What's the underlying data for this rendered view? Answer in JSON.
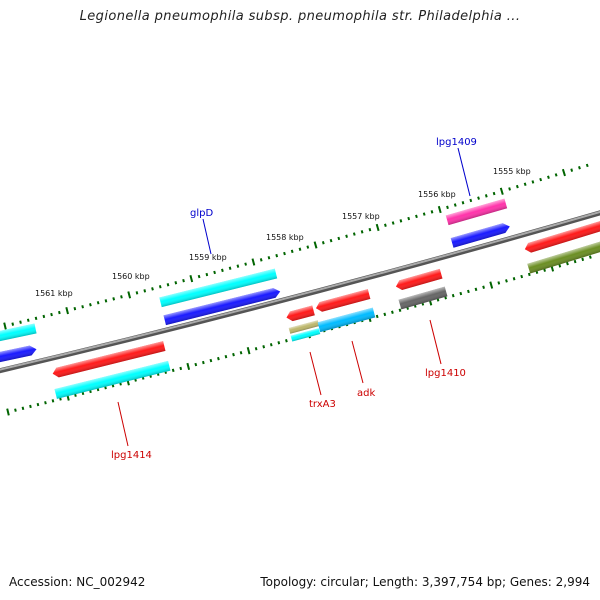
{
  "title": "Legionella pneumophila subsp. pneumophila str. Philadelphia ...",
  "footer": {
    "accession": "Accession: NC_002942",
    "summary": "Topology: circular; Length: 3,397,754 bp; Genes: 2,994"
  },
  "ticks": [
    "1561 kbp",
    "1560 kbp",
    "1559 kbp",
    "1558 kbp",
    "1557 kbp",
    "1556 kbp",
    "1555 kbp"
  ],
  "genes": {
    "glpD": "glpD",
    "lpg1409": "lpg1409",
    "lpg1414": "lpg1414",
    "trxA3": "trxA3",
    "adk": "adk",
    "lpg1410": "lpg1410"
  },
  "colors": {
    "red": "#ff1a1a",
    "cyan": "#00ffff",
    "blue": "#1a1aff",
    "magenta": "#ff33aa",
    "gray": "#666666",
    "olive": "#6b8e23",
    "khaki": "#bdb76b",
    "sky": "#00bbff",
    "tick": "#006400",
    "backbone": "#888888",
    "label_forward": "#0000cc",
    "label_reverse": "#cc0000"
  }
}
